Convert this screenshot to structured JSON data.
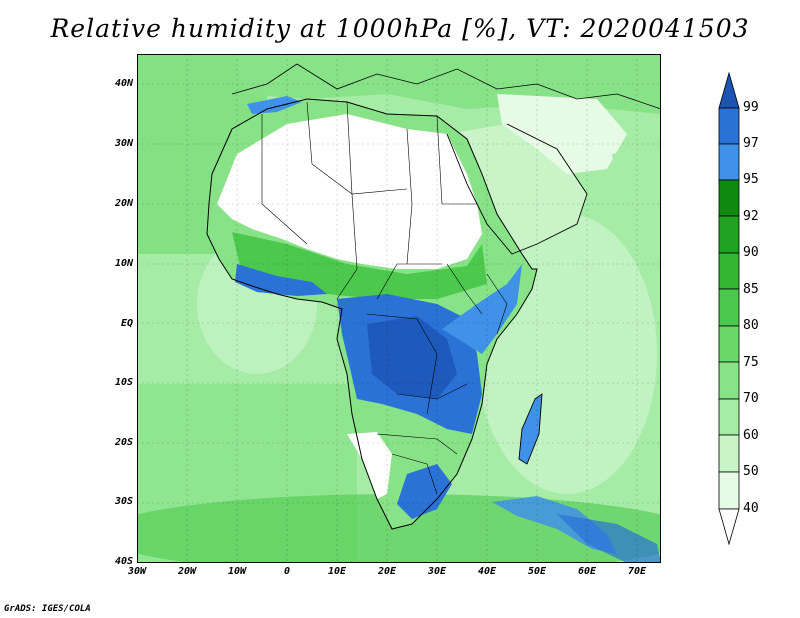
{
  "title": "Relative humidity at 1000hPa [%], VT: 2020041503",
  "credit": "GrADS: IGES/COLA",
  "map": {
    "lon_range": [
      -30,
      75
    ],
    "lat_range": [
      -40,
      45
    ],
    "lat_ticks": [
      "40N",
      "30N",
      "20N",
      "10N",
      "EQ",
      "10S",
      "20S",
      "30S",
      "40S"
    ],
    "lon_ticks": [
      "30W",
      "20W",
      "10W",
      "0",
      "10E",
      "20E",
      "30E",
      "40E",
      "50E",
      "60E",
      "70E"
    ]
  },
  "colorbar": {
    "levels": [
      "40",
      "50",
      "60",
      "70",
      "75",
      "80",
      "85",
      "90",
      "92",
      "95",
      "97",
      "99"
    ],
    "colors": {
      "below": "#ffffff",
      "40-50": "#e6fae6",
      "50-60": "#c8f4c8",
      "60-70": "#a6eba6",
      "70-75": "#88e288",
      "75-80": "#6cd86c",
      "80-85": "#4cc94c",
      "85-90": "#33b733",
      "90-92": "#22a222",
      "92-95": "#108a10",
      "95-97": "#3f92e8",
      "97-99": "#2a72d6",
      "above": "#1c54b4"
    }
  }
}
